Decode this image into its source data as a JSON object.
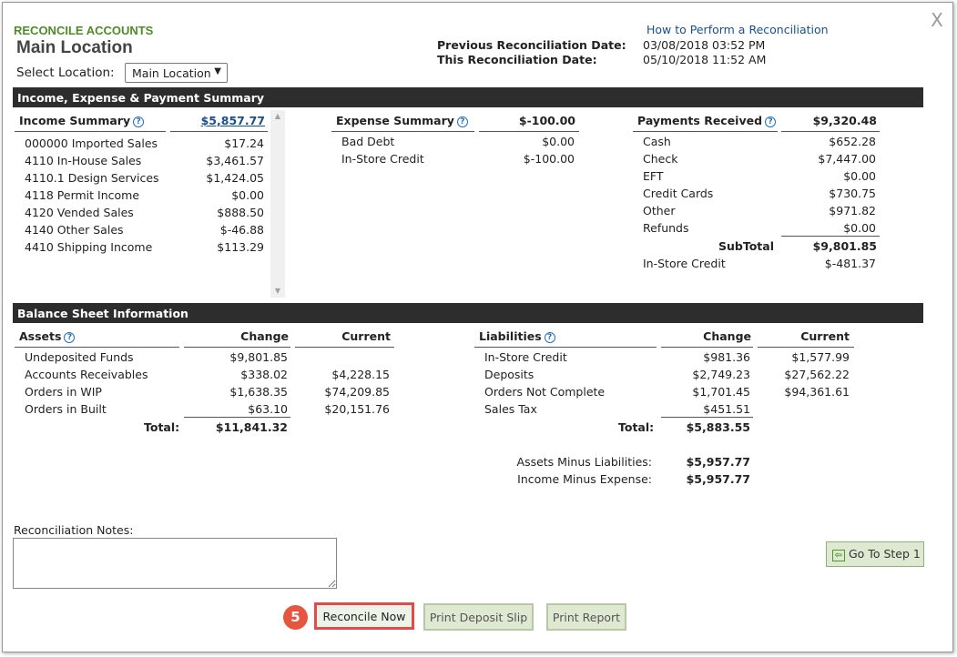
{
  "header": {
    "kicker": "RECONCILE ACCOUNTS",
    "title": "Main Location",
    "help_link": "How to Perform a Reconciliation",
    "close": "X",
    "prev_label": "Previous Reconciliation Date:",
    "prev_value": "03/08/2018 03:52 PM",
    "this_label": "This Reconciliation Date:",
    "this_value": "05/10/2018 11:52 AM",
    "select_label": "Select Location:",
    "select_value": "Main Location"
  },
  "summary": {
    "bar": "Income, Expense & Payment Summary",
    "income": {
      "title": "Income Summary",
      "total": "$5,857.77",
      "rows": [
        {
          "label": "000000 Imported Sales",
          "value": "$17.24"
        },
        {
          "label": "4110 In-House Sales",
          "value": "$3,461.57"
        },
        {
          "label": "4110.1 Design Services",
          "value": "$1,424.05"
        },
        {
          "label": "4118 Permit Income",
          "value": "$0.00"
        },
        {
          "label": "4120 Vended Sales",
          "value": "$888.50"
        },
        {
          "label": "4140 Other Sales",
          "value": "$-46.88"
        },
        {
          "label": "4410 Shipping Income",
          "value": "$113.29"
        }
      ]
    },
    "expense": {
      "title": "Expense Summary",
      "total": "$-100.00",
      "rows": [
        {
          "label": "Bad Debt",
          "value": "$0.00"
        },
        {
          "label": "In-Store Credit",
          "value": "$-100.00"
        }
      ]
    },
    "payments": {
      "title": "Payments Received",
      "total": "$9,320.48",
      "rows": [
        {
          "label": "Cash",
          "value": "$652.28"
        },
        {
          "label": "Check",
          "value": "$7,447.00"
        },
        {
          "label": "EFT",
          "value": "$0.00"
        },
        {
          "label": "Credit Cards",
          "value": "$730.75"
        },
        {
          "label": "Other",
          "value": "$971.82"
        },
        {
          "label": "Refunds",
          "value": "$0.00"
        }
      ],
      "subtotal_label": "SubTotal",
      "subtotal": "$9,801.85",
      "credit_label": "In-Store Credit",
      "credit": "$-481.37"
    }
  },
  "balance": {
    "bar": "Balance Sheet Information",
    "change_header": "Change",
    "current_header": "Current",
    "assets": {
      "title": "Assets",
      "rows": [
        {
          "label": "Undeposited Funds",
          "change": "$9,801.85",
          "current": ""
        },
        {
          "label": "Accounts Receivables",
          "change": "$338.02",
          "current": "$4,228.15"
        },
        {
          "label": "Orders in WIP",
          "change": "$1,638.35",
          "current": "$74,209.85"
        },
        {
          "label": "Orders in Built",
          "change": "$63.10",
          "current": "$20,151.76"
        }
      ],
      "total_label": "Total:",
      "total": "$11,841.32"
    },
    "liabilities": {
      "title": "Liabilities",
      "rows": [
        {
          "label": "In-Store Credit",
          "change": "$981.36",
          "current": "$1,577.99"
        },
        {
          "label": "Deposits",
          "change": "$2,749.23",
          "current": "$27,562.22"
        },
        {
          "label": "Orders Not Complete",
          "change": "$1,701.45",
          "current": "$94,361.61"
        },
        {
          "label": "Sales Tax",
          "change": "$451.51",
          "current": ""
        }
      ],
      "total_label": "Total:",
      "total": "$5,883.55"
    },
    "aml_label": "Assets Minus Liabilities:",
    "aml": "$5,957.77",
    "ime_label": "Income Minus Expense:",
    "ime": "$5,957.77"
  },
  "notes_label": "Reconciliation Notes:",
  "buttons": {
    "step": "Go To Step 1",
    "reconcile": "Reconcile Now",
    "deposit": "Print Deposit Slip",
    "report": "Print Report",
    "badge": "5"
  },
  "colors": {
    "accent": "#4f8a2c",
    "bar": "#2d2d2d",
    "highlight": "#e34a4a",
    "link": "#1a4f8a"
  }
}
